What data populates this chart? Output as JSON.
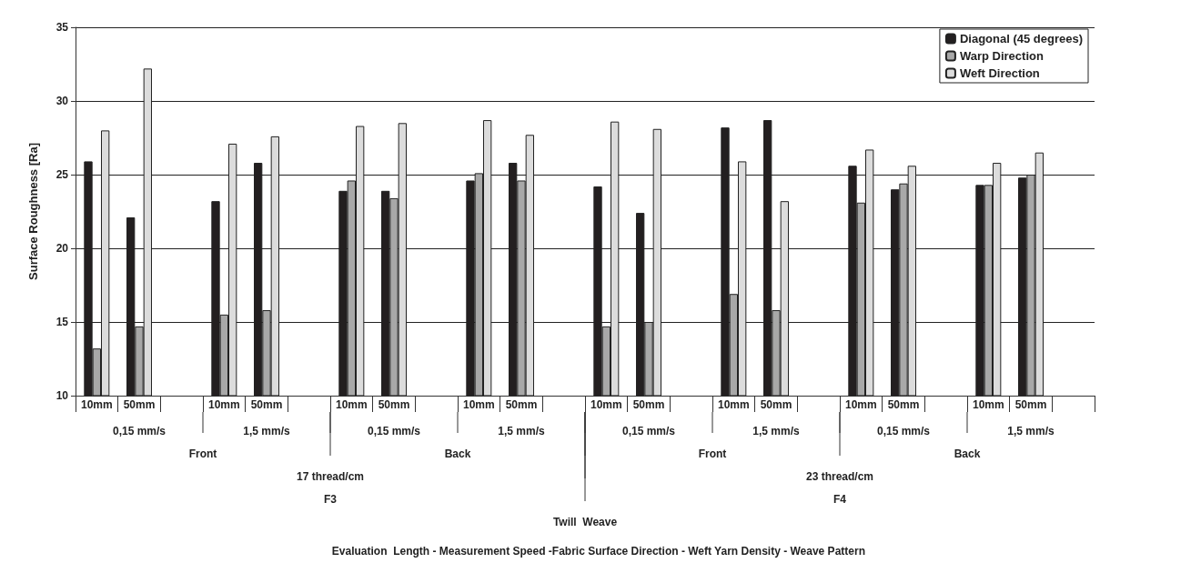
{
  "chart_data": {
    "type": "bar",
    "ylabel": "Surface Roughness [Ra]",
    "categories": [
      "10mm",
      "50mm",
      null,
      "10mm",
      "50mm",
      null,
      "10mm",
      "50mm",
      null,
      "10mm",
      "50mm",
      null,
      "10mm",
      "50mm",
      null,
      "10mm",
      "50mm",
      null,
      "10mm",
      "50mm",
      null,
      "10mm",
      "50mm",
      null
    ],
    "series": [
      {
        "name": "Diagonal (45 degrees)",
        "color": "#231f20",
        "values": [
          25.9,
          22.1,
          null,
          23.2,
          25.8,
          null,
          23.9,
          23.9,
          null,
          24.6,
          25.8,
          null,
          24.2,
          22.4,
          null,
          28.2,
          28.7,
          null,
          25.6,
          24.0,
          null,
          24.3,
          24.8,
          null
        ]
      },
      {
        "name": "Warp Direction",
        "color": "#a8a8a8",
        "values": [
          13.2,
          14.7,
          null,
          15.5,
          15.8,
          null,
          24.6,
          23.4,
          null,
          25.1,
          24.6,
          null,
          14.7,
          15.0,
          null,
          16.9,
          15.8,
          null,
          23.1,
          24.4,
          null,
          24.3,
          25.0,
          null
        ]
      },
      {
        "name": "Weft Direction",
        "color": "#dcdcdc",
        "values": [
          28.0,
          32.2,
          null,
          27.1,
          27.6,
          null,
          28.3,
          28.5,
          null,
          28.7,
          27.7,
          null,
          28.6,
          28.1,
          null,
          25.9,
          23.2,
          null,
          26.7,
          25.6,
          null,
          25.8,
          26.5,
          null
        ]
      }
    ],
    "annotations": [
      "0,15 mm/s",
      "1,5 mm/s",
      "0,15 mm/s",
      "1,5 mm/s",
      "0,15 mm/s",
      "1,5 mm/s",
      "0,15 mm/s",
      "1,5 mm/s",
      "Front",
      "Back",
      "Front",
      "Back",
      "17 thread/cm",
      "23 thread/cm",
      "F3",
      "F4",
      "Twill  Weave",
      "Evaluation  Length - Measurement Speed -Fabric Surface Direction - Weft Yarn Density - Weave Pattern"
    ],
    "ylim": [
      10,
      35
    ],
    "yticks": [
      10,
      15,
      20,
      25,
      30,
      35
    ],
    "grid": "y",
    "legend": "top right"
  }
}
